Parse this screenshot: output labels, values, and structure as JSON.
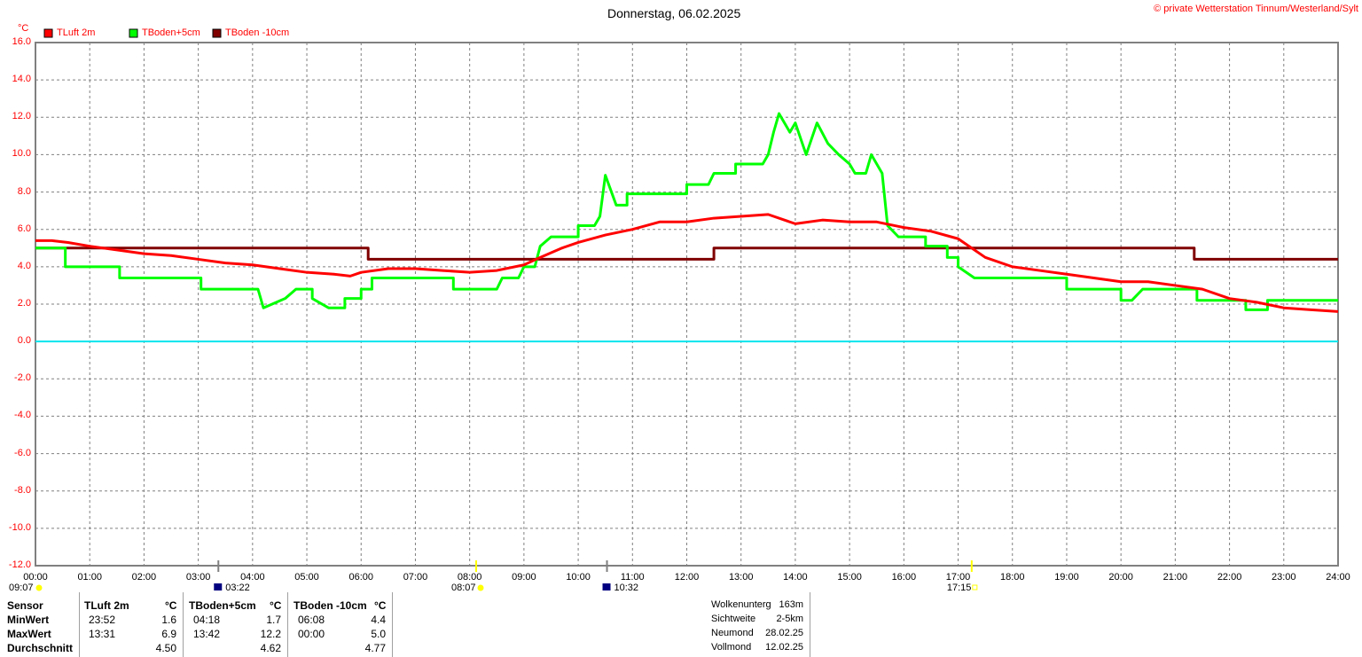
{
  "chart_data": {
    "type": "line",
    "title": "Donnerstag, 06.02.2025",
    "copyright": "© private Wetterstation Tinnum/Westerland/Sylt",
    "ylabel": "°C",
    "ylim": [
      -12,
      16
    ],
    "yticks": [
      "16.0",
      "14.0",
      "12.0",
      "10.0",
      "8.0",
      "6.0",
      "4.0",
      "2.0",
      "0.0",
      "-2.0",
      "-4.0",
      "-6.0",
      "-8.0",
      "-10.0",
      "-12.0"
    ],
    "xlim": [
      0,
      24
    ],
    "xticks": [
      "00:00",
      "01:00",
      "02:00",
      "03:00",
      "04:00",
      "05:00",
      "06:00",
      "07:00",
      "08:00",
      "09:00",
      "10:00",
      "11:00",
      "12:00",
      "13:00",
      "14:00",
      "15:00",
      "16:00",
      "17:00",
      "18:00",
      "19:00",
      "20:00",
      "21:00",
      "22:00",
      "23:00",
      "24:00"
    ],
    "grid": true,
    "legend_position": "top-left",
    "series": [
      {
        "name": "TLuft 2m",
        "color": "#ff0000",
        "points": [
          [
            0,
            5.4
          ],
          [
            0.3,
            5.4
          ],
          [
            0.6,
            5.3
          ],
          [
            1,
            5.1
          ],
          [
            1.5,
            4.9
          ],
          [
            2,
            4.7
          ],
          [
            2.5,
            4.6
          ],
          [
            3,
            4.4
          ],
          [
            3.5,
            4.2
          ],
          [
            4,
            4.1
          ],
          [
            4.5,
            3.9
          ],
          [
            5,
            3.7
          ],
          [
            5.5,
            3.6
          ],
          [
            5.8,
            3.5
          ],
          [
            6,
            3.7
          ],
          [
            6.5,
            3.9
          ],
          [
            7,
            3.9
          ],
          [
            7.5,
            3.8
          ],
          [
            8,
            3.7
          ],
          [
            8.5,
            3.8
          ],
          [
            9,
            4.1
          ],
          [
            9.3,
            4.5
          ],
          [
            9.7,
            5.0
          ],
          [
            10,
            5.3
          ],
          [
            10.5,
            5.7
          ],
          [
            11,
            6.0
          ],
          [
            11.5,
            6.4
          ],
          [
            12,
            6.4
          ],
          [
            12.5,
            6.6
          ],
          [
            13,
            6.7
          ],
          [
            13.5,
            6.8
          ],
          [
            14,
            6.3
          ],
          [
            14.5,
            6.5
          ],
          [
            15,
            6.4
          ],
          [
            15.5,
            6.4
          ],
          [
            16,
            6.1
          ],
          [
            16.5,
            5.9
          ],
          [
            17,
            5.5
          ],
          [
            17.5,
            4.5
          ],
          [
            18,
            4.0
          ],
          [
            18.5,
            3.8
          ],
          [
            19,
            3.6
          ],
          [
            19.5,
            3.4
          ],
          [
            20,
            3.2
          ],
          [
            20.5,
            3.2
          ],
          [
            21,
            3.0
          ],
          [
            21.5,
            2.8
          ],
          [
            22,
            2.3
          ],
          [
            22.5,
            2.1
          ],
          [
            23,
            1.8
          ],
          [
            23.5,
            1.7
          ],
          [
            24,
            1.6
          ]
        ]
      },
      {
        "name": "TBoden+5cm",
        "color": "#00ff00",
        "points": [
          [
            0,
            5.0
          ],
          [
            0.55,
            5.0
          ],
          [
            0.55,
            4.0
          ],
          [
            1.55,
            4.0
          ],
          [
            1.55,
            3.4
          ],
          [
            3.05,
            3.4
          ],
          [
            3.05,
            2.8
          ],
          [
            4.1,
            2.8
          ],
          [
            4.2,
            1.8
          ],
          [
            4.6,
            2.3
          ],
          [
            4.8,
            2.8
          ],
          [
            5.1,
            2.8
          ],
          [
            5.1,
            2.3
          ],
          [
            5.4,
            1.8
          ],
          [
            5.7,
            1.8
          ],
          [
            5.7,
            2.3
          ],
          [
            6,
            2.3
          ],
          [
            6,
            2.8
          ],
          [
            6.2,
            2.8
          ],
          [
            6.2,
            3.4
          ],
          [
            7.7,
            3.4
          ],
          [
            7.7,
            2.8
          ],
          [
            8.5,
            2.8
          ],
          [
            8.6,
            3.4
          ],
          [
            8.9,
            3.4
          ],
          [
            9,
            4.0
          ],
          [
            9.2,
            4.0
          ],
          [
            9.3,
            5.1
          ],
          [
            9.5,
            5.6
          ],
          [
            10,
            5.6
          ],
          [
            10,
            6.2
          ],
          [
            10.3,
            6.2
          ],
          [
            10.4,
            6.7
          ],
          [
            10.5,
            8.9
          ],
          [
            10.7,
            7.3
          ],
          [
            10.9,
            7.3
          ],
          [
            10.9,
            7.9
          ],
          [
            11.5,
            7.9
          ],
          [
            12,
            7.9
          ],
          [
            12,
            8.4
          ],
          [
            12.4,
            8.4
          ],
          [
            12.5,
            9.0
          ],
          [
            12.9,
            9.0
          ],
          [
            12.9,
            9.5
          ],
          [
            13.4,
            9.5
          ],
          [
            13.5,
            10.0
          ],
          [
            13.6,
            11.2
          ],
          [
            13.7,
            12.2
          ],
          [
            13.9,
            11.2
          ],
          [
            14,
            11.7
          ],
          [
            14.2,
            10.0
          ],
          [
            14.4,
            11.7
          ],
          [
            14.6,
            10.6
          ],
          [
            14.8,
            10.0
          ],
          [
            15,
            9.5
          ],
          [
            15.1,
            9.0
          ],
          [
            15.3,
            9.0
          ],
          [
            15.4,
            10.0
          ],
          [
            15.6,
            9.0
          ],
          [
            15.7,
            6.2
          ],
          [
            15.9,
            5.6
          ],
          [
            16.4,
            5.6
          ],
          [
            16.4,
            5.1
          ],
          [
            16.8,
            5.1
          ],
          [
            16.8,
            4.5
          ],
          [
            17,
            4.5
          ],
          [
            17,
            4.0
          ],
          [
            17.3,
            3.4
          ],
          [
            19,
            3.4
          ],
          [
            19,
            2.8
          ],
          [
            20,
            2.8
          ],
          [
            20,
            2.2
          ],
          [
            20.2,
            2.2
          ],
          [
            20.4,
            2.8
          ],
          [
            21.4,
            2.8
          ],
          [
            21.4,
            2.2
          ],
          [
            22.3,
            2.2
          ],
          [
            22.3,
            1.7
          ],
          [
            22.7,
            1.7
          ],
          [
            22.7,
            2.2
          ],
          [
            24,
            2.2
          ]
        ]
      },
      {
        "name": "TBoden -10cm",
        "color": "#800000",
        "points": [
          [
            0,
            5.0
          ],
          [
            6.13,
            5.0
          ],
          [
            6.13,
            4.4
          ],
          [
            12.5,
            4.4
          ],
          [
            12.5,
            5.0
          ],
          [
            21.35,
            5.0
          ],
          [
            21.35,
            4.4
          ],
          [
            24,
            4.4
          ]
        ]
      }
    ],
    "annotations": [
      {
        "label": "09:07",
        "kind": "sunrise-prev",
        "hour": 0
      },
      {
        "label": "03:22",
        "kind": "moonrise",
        "hour": 3.37
      },
      {
        "label": "08:07",
        "kind": "sunrise",
        "hour": 8.12
      },
      {
        "label": "10:32",
        "kind": "moonset",
        "hour": 10.53
      },
      {
        "label": "17:15",
        "kind": "sunset",
        "hour": 17.25
      }
    ]
  },
  "stats": {
    "headers": [
      "Sensor",
      "TLuft 2m",
      "°C",
      "TBoden+5cm",
      "°C",
      "TBoden -10cm",
      "°C"
    ],
    "rows": [
      {
        "label": "MinWert",
        "c1": "23:52",
        "v1": "1.6",
        "c2": "04:18",
        "v2": "1.7",
        "c3": "06:08",
        "v3": "4.4"
      },
      {
        "label": "MaxWert",
        "c1": "13:31",
        "v1": "6.9",
        "c2": "13:42",
        "v2": "12.2",
        "c3": "00:00",
        "v3": "5.0"
      },
      {
        "label": "Durchschnitt",
        "c1": "",
        "v1": "4.50",
        "c2": "",
        "v2": "4.62",
        "c3": "",
        "v3": "4.77"
      }
    ]
  },
  "info": [
    {
      "label": "Wolkenunterg",
      "value": "163m"
    },
    {
      "label": "Sichtweite",
      "value": "2-5km"
    },
    {
      "label": "Neumond",
      "value": "28.02.25"
    },
    {
      "label": "Vollmond",
      "value": "12.02.25"
    }
  ]
}
